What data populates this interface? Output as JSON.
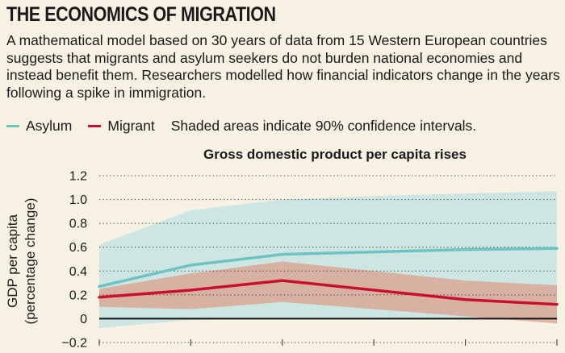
{
  "header": {
    "title": "THE ECONOMICS OF MIGRATION",
    "description": "A mathematical model based on 30 years of data from 15 Western European countries suggests that migrants and asylum seekers do not burden national economies and instead benefit them. Researchers modelled how financial indicators change in the years following a spike in immigration."
  },
  "legend": {
    "asylum_label": "Asylum",
    "migrant_label": "Migrant",
    "note": "Shaded areas indicate 90% confidence intervals."
  },
  "colors": {
    "asylum": "#6cc3c1",
    "asylum_band": "#cde6e1",
    "migrant": "#c8102e",
    "migrant_band": "#d9a592",
    "background": "#f7f1e4"
  },
  "chart_data": {
    "type": "line",
    "title": "Gross domestic product per capita rises",
    "ylabel_line1": "GDP per capita",
    "ylabel_line2": "(percentage change)",
    "ylim": [
      -0.2,
      1.2
    ],
    "yticks": [
      -0.2,
      0,
      0.2,
      0.4,
      0.6,
      0.8,
      1.0,
      1.2
    ],
    "ytick_labels": [
      "−0.2",
      "0",
      "0.2",
      "0.4",
      "0.6",
      "0.8",
      "1.0",
      "1.2"
    ],
    "x": [
      0,
      1,
      2,
      3,
      4,
      5
    ],
    "series": [
      {
        "name": "Asylum",
        "values": [
          0.27,
          0.45,
          0.54,
          0.56,
          0.58,
          0.59
        ],
        "lower": [
          -0.08,
          -0.01,
          0.0,
          0.0,
          0.0,
          0.0
        ],
        "upper": [
          0.62,
          0.91,
          1.0,
          1.03,
          1.05,
          1.07
        ]
      },
      {
        "name": "Migrant",
        "values": [
          0.18,
          0.24,
          0.32,
          0.24,
          0.16,
          0.12
        ],
        "lower": [
          0.1,
          0.08,
          0.14,
          0.08,
          0.02,
          -0.04
        ],
        "upper": [
          0.25,
          0.38,
          0.48,
          0.4,
          0.32,
          0.28
        ]
      }
    ]
  }
}
